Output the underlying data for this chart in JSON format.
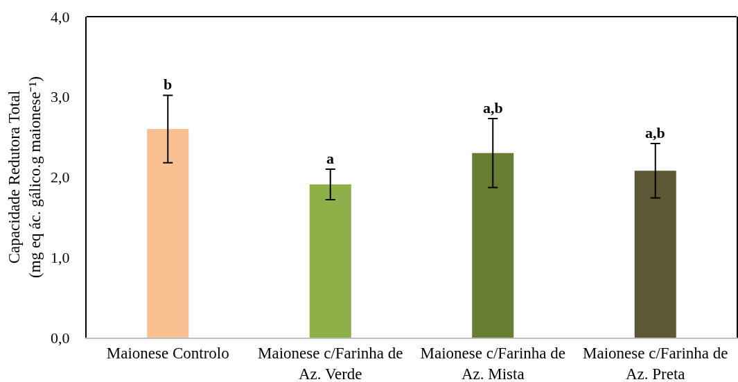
{
  "chart_data": {
    "type": "bar",
    "ylabel": "Capacidade Redutora Total (mg eq ác. gálico.g maionese⁻¹)",
    "categories": [
      "Maionese Controlo",
      "Maionese c/Farinha de Az. Verde",
      "Maionese c/Farinha de Az. Mista",
      "Maionese c/Farinha de Az. Preta"
    ],
    "values": [
      2.6,
      1.91,
      2.3,
      2.08
    ],
    "colors": [
      "#f9c191",
      "#8db048",
      "#687c33",
      "#5c5734"
    ],
    "errors": [
      0.42,
      0.19,
      0.43,
      0.34
    ],
    "ylim": [
      0,
      4
    ],
    "yticks": [
      {
        "value": 0,
        "label": "0,0"
      },
      {
        "value": 1,
        "label": "1,0"
      },
      {
        "value": 2,
        "label": "2,0"
      },
      {
        "value": 3,
        "label": "3,0"
      },
      {
        "value": 4,
        "label": "4,0"
      }
    ],
    "annotations": [
      {
        "text": "b",
        "x": "Maionese Controlo",
        "y": 3.02
      },
      {
        "text": "a",
        "x": "Maionese c/Farinha de Az. Verde",
        "y": 2.1
      },
      {
        "text": "a,b",
        "x": "Maionese c/Farinha de Az. Mista",
        "y": 2.73
      },
      {
        "text": "a,b",
        "x": "Maionese c/Farinha de Az. Preta",
        "y": 2.42
      }
    ]
  }
}
